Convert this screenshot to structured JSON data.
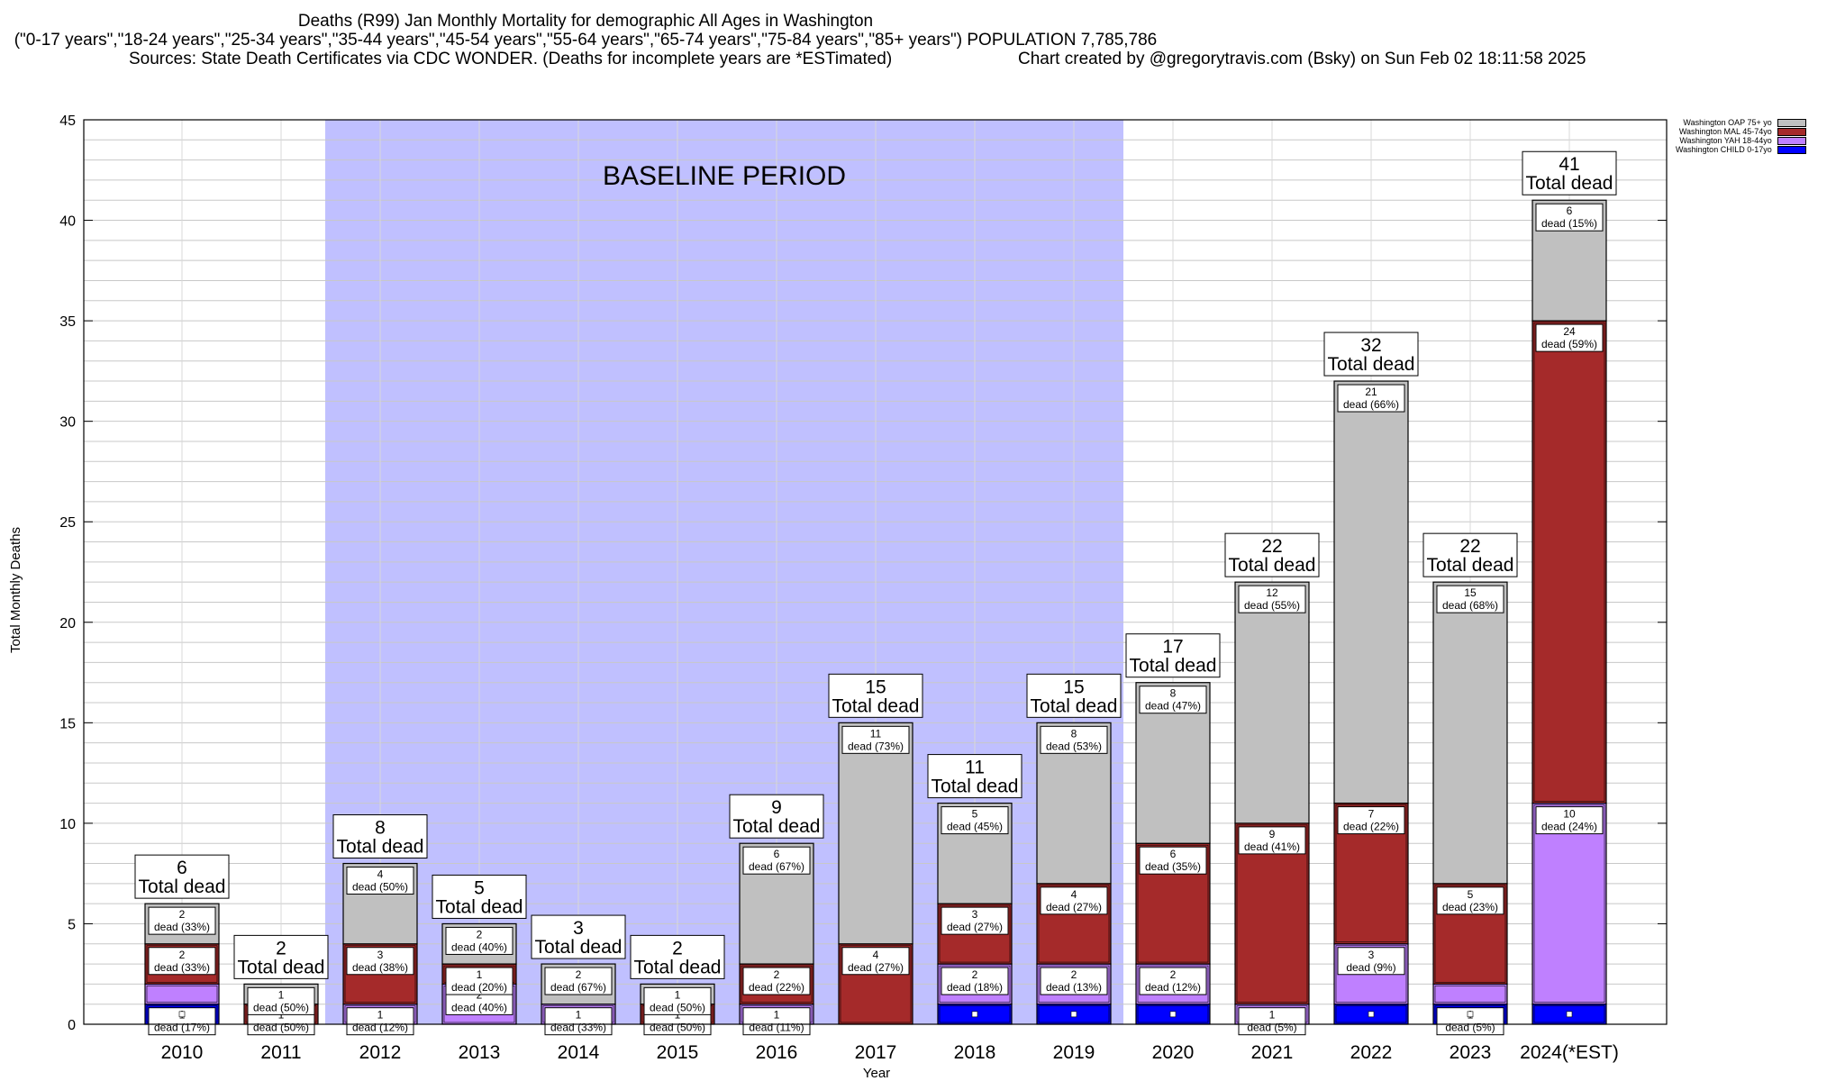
{
  "header": {
    "line1": "Deaths (R99) Jan Monthly Mortality for demographic All Ages in Washington",
    "line2": "(\"0-17 years\",\"18-24 years\",\"25-34 years\",\"35-44 years\",\"45-54 years\",\"55-64 years\",\"65-74 years\",\"75-84 years\",\"85+ years\") POPULATION 7,785,786",
    "line3_left": "Sources: State Death Certificates via CDC WONDER. (Deaths for incomplete years are *ESTimated)",
    "line3_right": "Chart created by @gregorytravis.com (Bsky) on Sun Feb 02 18:11:58 2025"
  },
  "chart_data": {
    "type": "bar",
    "stacked": true,
    "xlabel": "Year",
    "ylabel": "Total Monthly Deaths",
    "ylim": [
      0,
      45
    ],
    "yticks": [
      "0",
      "5",
      "10",
      "15",
      "20",
      "25",
      "30",
      "35",
      "40",
      "45"
    ],
    "baseline_label": "BASELINE PERIOD",
    "baseline_range": [
      "2012",
      "2019"
    ],
    "categories": [
      "2010",
      "2011",
      "2012",
      "2013",
      "2014",
      "2015",
      "2016",
      "2017",
      "2018",
      "2019",
      "2020",
      "2021",
      "2022",
      "2023",
      "2024(*EST)"
    ],
    "totals": [
      6,
      2,
      8,
      5,
      3,
      2,
      9,
      15,
      11,
      15,
      17,
      22,
      32,
      22,
      41
    ],
    "total_suffix": "Total dead",
    "series": [
      {
        "name": "Washington CHILD 0-17yo",
        "color": "#0000ff",
        "values": [
          1,
          0,
          0,
          0,
          0,
          0,
          0,
          0,
          1,
          1,
          1,
          0,
          1,
          1,
          1
        ],
        "labels": [
          "dead (17%)",
          "",
          "",
          "",
          "",
          "",
          "",
          "",
          "",
          "",
          "",
          "",
          "",
          "dead (5%)",
          ""
        ]
      },
      {
        "name": "Washington YAH 18-44yo",
        "color": "#bf80ff",
        "values": [
          1,
          0,
          1,
          2,
          1,
          0,
          1,
          0,
          2,
          2,
          2,
          1,
          3,
          1,
          10
        ],
        "labels": [
          "",
          "",
          "dead (12%)",
          "dead (40%)",
          "dead (33%)",
          "",
          "dead (11%)",
          "",
          "dead (18%)",
          "dead (13%)",
          "dead (12%)",
          "dead (5%)",
          "dead (9%)",
          "",
          "dead (24%)"
        ]
      },
      {
        "name": "Washington MAL 45-74yo",
        "color": "#a52a2a",
        "values": [
          2,
          1,
          3,
          1,
          0,
          1,
          2,
          4,
          3,
          4,
          6,
          9,
          7,
          5,
          24
        ],
        "labels": [
          "dead (33%)",
          "dead (50%)",
          "dead (38%)",
          "dead (20%)",
          "",
          "dead (50%)",
          "dead (22%)",
          "dead (27%)",
          "dead (27%)",
          "dead (27%)",
          "dead (35%)",
          "dead (41%)",
          "dead (22%)",
          "dead (23%)",
          "dead (59%)"
        ]
      },
      {
        "name": "Washington OAP 75+ yo",
        "color": "#c0c0c0",
        "values": [
          2,
          1,
          4,
          2,
          2,
          1,
          6,
          11,
          5,
          8,
          8,
          12,
          21,
          15,
          6
        ],
        "labels": [
          "dead (33%)",
          "dead (50%)",
          "dead (50%)",
          "dead (40%)",
          "dead (67%)",
          "dead (50%)",
          "dead (67%)",
          "dead (73%)",
          "dead (45%)",
          "dead (53%)",
          "dead (47%)",
          "dead (55%)",
          "dead (66%)",
          "dead (68%)",
          "dead (15%)"
        ]
      }
    ],
    "legend_order": [
      "Washington OAP 75+ yo",
      "Washington MAL 45-74yo",
      "Washington YAH 18-44yo",
      "Washington CHILD 0-17yo"
    ],
    "legend_position": "top-right"
  }
}
